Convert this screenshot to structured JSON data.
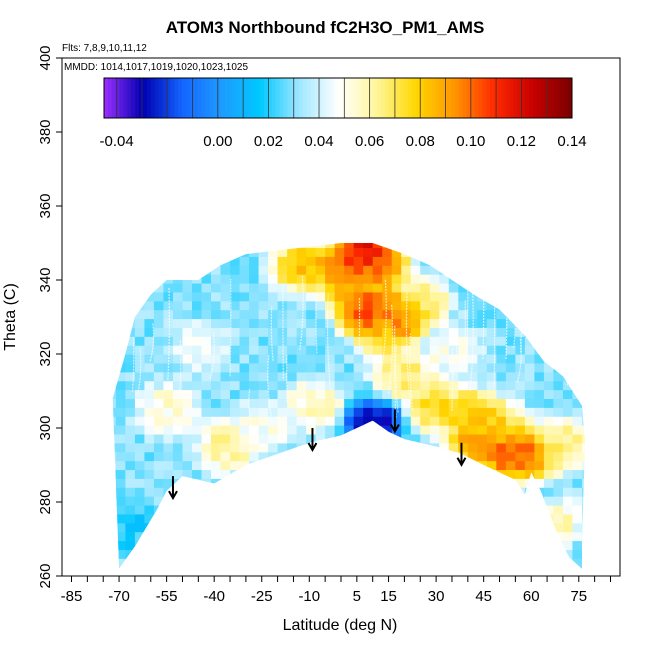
{
  "chart_data": {
    "type": "heatmap",
    "title": "ATOM3 Northbound fC2H3O_PM1_AMS",
    "annotations": [
      "Flts: 7,8,9,10,11,12",
      "MMDD: 1014,1017,1019,1020,1023,1025"
    ],
    "xlabel": "Latitude (deg N)",
    "ylabel": "Theta (C)",
    "xlim": [
      -85,
      85
    ],
    "ylim": [
      260,
      400
    ],
    "x_ticks": [
      -85,
      -70,
      -55,
      -40,
      -25,
      -10,
      5,
      15,
      30,
      45,
      60,
      75
    ],
    "x_tick_labels": [
      "-85",
      "-70",
      "-55",
      "-40",
      "-25",
      "-10",
      "5",
      "15",
      "30",
      "45",
      "60",
      "75"
    ],
    "y_ticks": [
      260,
      280,
      300,
      320,
      340,
      360,
      380,
      400
    ],
    "y_tick_labels": [
      "260",
      "280",
      "300",
      "320",
      "340",
      "360",
      "380",
      "400"
    ],
    "colorbar": {
      "range": [
        -0.045,
        0.14
      ],
      "ticks": [
        -0.04,
        0.0,
        0.02,
        0.04,
        0.06,
        0.08,
        0.1,
        0.12,
        0.14
      ],
      "tick_labels": [
        "-0.04",
        "0.00",
        "0.02",
        "0.04",
        "0.06",
        "0.08",
        "0.10",
        "0.12",
        "0.14"
      ],
      "colors": [
        "#9b30ff",
        "#0000b0",
        "#1464ff",
        "#1e9bff",
        "#00c8ff",
        "#9ee7ff",
        "#ffffff",
        "#fff59a",
        "#ffd700",
        "#ff9500",
        "#ff2a00",
        "#c80000",
        "#7a0000"
      ]
    },
    "envelope_bottom": [
      [
        -70,
        262
      ],
      [
        -65,
        268
      ],
      [
        -58,
        278
      ],
      [
        -55,
        283
      ],
      [
        -50,
        287
      ],
      [
        -45,
        286
      ],
      [
        -40,
        285
      ],
      [
        -30,
        290
      ],
      [
        -20,
        293
      ],
      [
        -10,
        296
      ],
      [
        0,
        298
      ],
      [
        5,
        300
      ],
      [
        10,
        302
      ],
      [
        15,
        299
      ],
      [
        20,
        297
      ],
      [
        30,
        295
      ],
      [
        38,
        293
      ],
      [
        45,
        290
      ],
      [
        55,
        286
      ],
      [
        58,
        282
      ],
      [
        60,
        288
      ],
      [
        63,
        283
      ],
      [
        68,
        272
      ],
      [
        72,
        265
      ],
      [
        76,
        262
      ]
    ],
    "envelope_top": [
      [
        -72,
        308
      ],
      [
        -68,
        320
      ],
      [
        -65,
        330
      ],
      [
        -60,
        336
      ],
      [
        -55,
        340
      ],
      [
        -45,
        340
      ],
      [
        -38,
        344
      ],
      [
        -30,
        347
      ],
      [
        -20,
        348
      ],
      [
        -10,
        349
      ],
      [
        0,
        350
      ],
      [
        10,
        350
      ],
      [
        20,
        347
      ],
      [
        28,
        344
      ],
      [
        35,
        340
      ],
      [
        42,
        336
      ],
      [
        50,
        332
      ],
      [
        58,
        325
      ],
      [
        64,
        318
      ],
      [
        70,
        314
      ],
      [
        76,
        306
      ],
      [
        77,
        296
      ],
      [
        76,
        270
      ],
      [
        76,
        262
      ]
    ],
    "features": [
      {
        "lat": -12,
        "theta": 344,
        "value": 0.09
      },
      {
        "lat": 2,
        "theta": 344,
        "value": 0.11
      },
      {
        "lat": 8,
        "theta": 348,
        "value": 0.13
      },
      {
        "lat": 12,
        "theta": 344,
        "value": 0.1
      },
      {
        "lat": 4,
        "theta": 338,
        "value": 0.09
      },
      {
        "lat": 8,
        "theta": 332,
        "value": 0.12
      },
      {
        "lat": 18,
        "theta": 330,
        "value": 0.11
      },
      {
        "lat": 14,
        "theta": 326,
        "value": 0.08
      },
      {
        "lat": 25,
        "theta": 334,
        "value": 0.07
      },
      {
        "lat": 20,
        "theta": 314,
        "value": 0.07
      },
      {
        "lat": 30,
        "theta": 306,
        "value": 0.08
      },
      {
        "lat": 42,
        "theta": 303,
        "value": 0.09
      },
      {
        "lat": 50,
        "theta": 300,
        "value": 0.08
      },
      {
        "lat": 44,
        "theta": 296,
        "value": 0.1
      },
      {
        "lat": 55,
        "theta": 293,
        "value": 0.12
      },
      {
        "lat": 60,
        "theta": 290,
        "value": 0.09
      },
      {
        "lat": 70,
        "theta": 296,
        "value": 0.07
      },
      {
        "lat": 66,
        "theta": 275,
        "value": 0.065
      },
      {
        "lat": -36,
        "theta": 295,
        "value": 0.065
      },
      {
        "lat": -8,
        "theta": 306,
        "value": 0.06
      },
      {
        "lat": 10,
        "theta": 301,
        "value": -0.04
      },
      {
        "lat": -55,
        "theta": 305,
        "value": 0.055
      },
      {
        "lat": -25,
        "theta": 300,
        "value": 0.05
      },
      {
        "lat": -65,
        "theta": 272,
        "value": 0.018
      },
      {
        "lat": -45,
        "theta": 322,
        "value": 0.045
      },
      {
        "lat": 35,
        "theta": 320,
        "value": 0.05
      },
      {
        "lat": 55,
        "theta": 270,
        "value": 0.03
      },
      {
        "lat": 62,
        "theta": 282,
        "value": 0.025
      }
    ],
    "background_value": 0.03,
    "arrows": [
      [
        -53,
        287
      ],
      [
        -9,
        300
      ],
      [
        17,
        305
      ],
      [
        38,
        296
      ]
    ]
  }
}
